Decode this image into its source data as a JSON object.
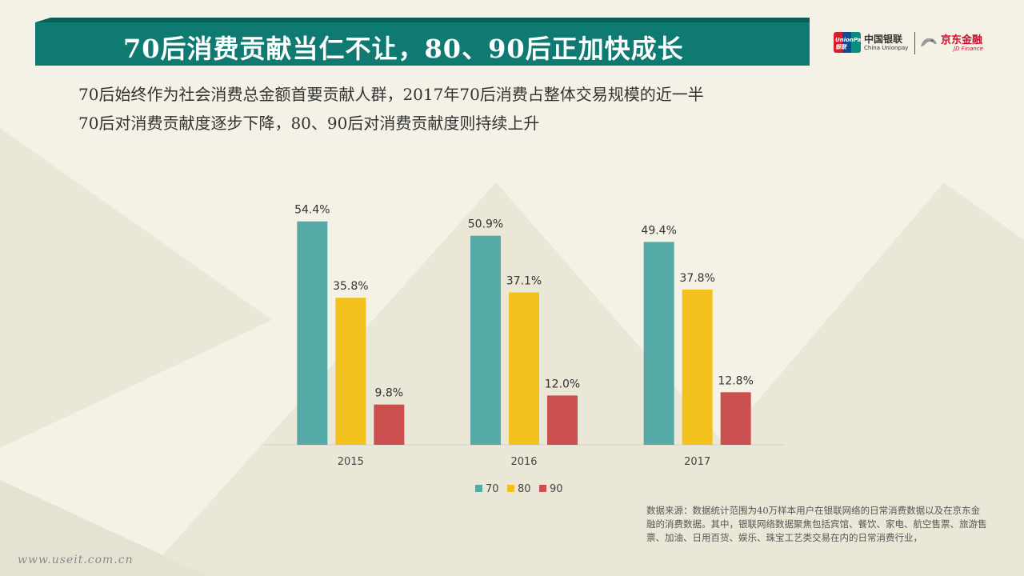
{
  "header": {
    "title": "70后消费贡献当仁不让，80、90后正加快成长"
  },
  "logos": {
    "unionpay_mark": "UnionPay 银联",
    "unionpay_cn": "中国银联",
    "unionpay_en": "China Unionpay",
    "jd_cn": "京东金融",
    "jd_en": "JD Finance"
  },
  "subtitle": {
    "line1": "70后始终作为社会消费总金额首要贡献人群，2017年70后消费占整体交易规模的近一半",
    "line2": "70后对消费贡献度逐步下降，80、90后对消费贡献度则持续上升"
  },
  "chart_data": {
    "type": "bar",
    "categories": [
      "2015",
      "2016",
      "2017"
    ],
    "series": [
      {
        "name": "70",
        "values": [
          54.4,
          50.9,
          49.4
        ],
        "labels": [
          "54.4%",
          "50.9%",
          "49.4%"
        ],
        "color": "#55aaa8"
      },
      {
        "name": "80",
        "values": [
          35.8,
          37.1,
          37.8
        ],
        "labels": [
          "35.8%",
          "37.1%",
          "37.8%"
        ],
        "color": "#f2c11d"
      },
      {
        "name": "90",
        "values": [
          9.8,
          12.0,
          12.8
        ],
        "labels": [
          "9.8%",
          "12.0%",
          "12.8%"
        ],
        "color": "#c9504e"
      }
    ],
    "title": "",
    "xlabel": "",
    "ylabel": "",
    "ylim": [
      0,
      60
    ],
    "grid": false,
    "legend": "bottom"
  },
  "note": "数据来源：数据统计范围为40万样本用户在银联网络的日常消费数据以及在京东金融的消费数据。其中，银联网络数据聚焦包括宾馆、餐饮、家电、航空售票、旅游售票、加油、日用百货、娱乐、珠宝工艺类交易在内的日常消费行业，",
  "watermark": "www.useit.com.cn"
}
